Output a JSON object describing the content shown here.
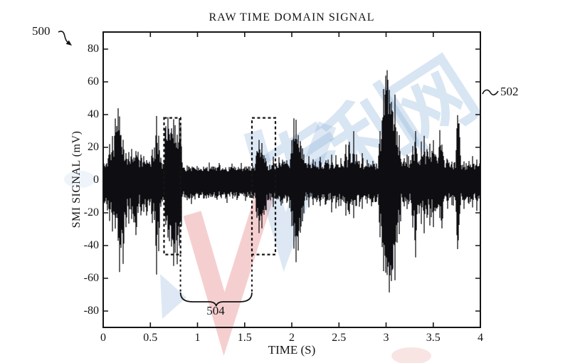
{
  "figure": {
    "label_500": "500",
    "label_502": "502"
  },
  "watermark": {
    "text": "专利网",
    "blue": "#8fb4da",
    "red": "#e06a6a"
  },
  "chart_data": {
    "type": "line",
    "title": "RAW TIME DOMAIN SIGNAL",
    "xlabel": "TIME (S)",
    "ylabel": "SMI SIGNAL (mV)",
    "xlim": [
      0,
      4
    ],
    "ylim": [
      -90,
      90
    ],
    "grid": false,
    "xticks": [
      0,
      0.5,
      1,
      1.5,
      2,
      2.5,
      3,
      3.5,
      4
    ],
    "xtick_labels": [
      "0",
      "0.5",
      "1",
      "1.5",
      "2",
      "2.5",
      "3",
      "3.5",
      "4"
    ],
    "yticks": [
      80,
      60,
      40,
      20,
      0,
      -20,
      -40,
      -60,
      -80
    ],
    "ytick_labels": [
      "80",
      "60",
      "40",
      "20",
      "0",
      "-20",
      "-40",
      "-60",
      "-80"
    ],
    "signal": {
      "description": "dense noisy SMI signal; envelope segments [t0,t1,hi_mV,lo_mV] plus spikes [t,hi_mV,lo_mV]",
      "baseline_band_mV": [
        -10,
        8
      ],
      "peak_mV": 81,
      "peak_t": 3.02,
      "min_mV": -81,
      "segments": [
        [
          0.0,
          0.05,
          10,
          -16
        ],
        [
          0.05,
          0.3,
          13,
          -15
        ],
        [
          0.3,
          0.62,
          11,
          -13
        ],
        [
          0.62,
          0.655,
          10,
          -12
        ],
        [
          0.655,
          0.835,
          28,
          -30
        ],
        [
          0.835,
          1.585,
          8,
          -11
        ],
        [
          1.585,
          1.62,
          8,
          -11
        ],
        [
          1.62,
          1.73,
          14,
          -18
        ],
        [
          1.73,
          1.83,
          9,
          -12
        ],
        [
          1.83,
          1.985,
          11,
          -13
        ],
        [
          1.985,
          2.14,
          16,
          -20
        ],
        [
          2.14,
          2.55,
          10,
          -12
        ],
        [
          2.55,
          2.72,
          12,
          -14
        ],
        [
          2.72,
          2.92,
          10,
          -13
        ],
        [
          2.92,
          3.16,
          16,
          -20
        ],
        [
          3.16,
          3.26,
          11,
          -13
        ],
        [
          3.26,
          3.34,
          12,
          -15
        ],
        [
          3.34,
          3.55,
          14,
          -17
        ],
        [
          3.55,
          3.62,
          12,
          -15
        ],
        [
          3.62,
          3.74,
          10,
          -12
        ],
        [
          3.74,
          3.78,
          12,
          -14
        ],
        [
          3.78,
          4.0,
          10,
          -12
        ]
      ],
      "spikes": [
        [
          0.07,
          22,
          -25
        ],
        [
          0.1,
          30,
          -35
        ],
        [
          0.125,
          38,
          -30
        ],
        [
          0.145,
          40,
          -25
        ],
        [
          0.16,
          45,
          -38
        ],
        [
          0.175,
          36,
          -52
        ],
        [
          0.19,
          30,
          -45
        ],
        [
          0.215,
          25,
          -52
        ],
        [
          0.24,
          20,
          -35
        ],
        [
          0.27,
          18,
          -28
        ],
        [
          0.3,
          20,
          -25
        ],
        [
          0.325,
          16,
          -30
        ],
        [
          0.345,
          20,
          -38
        ],
        [
          0.37,
          19,
          -22
        ],
        [
          0.4,
          18,
          -25
        ],
        [
          0.43,
          15,
          -20
        ],
        [
          0.46,
          14,
          -25
        ],
        [
          0.49,
          13,
          -18
        ],
        [
          0.52,
          20,
          -28
        ],
        [
          0.545,
          18,
          -22
        ],
        [
          0.565,
          36,
          -53
        ],
        [
          0.59,
          25,
          -40
        ],
        [
          0.61,
          15,
          -18
        ],
        [
          0.665,
          32,
          -22
        ],
        [
          0.685,
          35,
          -32
        ],
        [
          0.705,
          33,
          -44
        ],
        [
          0.725,
          35,
          -45
        ],
        [
          0.745,
          30,
          -52
        ],
        [
          0.765,
          34,
          -45
        ],
        [
          0.785,
          28,
          -52
        ],
        [
          0.805,
          34,
          -36
        ],
        [
          0.825,
          35,
          -26
        ],
        [
          1.63,
          20,
          -26
        ],
        [
          1.655,
          25,
          -33
        ],
        [
          1.68,
          23,
          -30
        ],
        [
          1.705,
          17,
          -24
        ],
        [
          1.8,
          13,
          -15
        ],
        [
          1.9,
          14,
          -16
        ],
        [
          1.95,
          13,
          -15
        ],
        [
          2.0,
          26,
          -30
        ],
        [
          2.02,
          36,
          -40
        ],
        [
          2.045,
          33,
          -45
        ],
        [
          2.065,
          30,
          -47
        ],
        [
          2.09,
          28,
          -38
        ],
        [
          2.115,
          20,
          -26
        ],
        [
          2.18,
          14,
          -16
        ],
        [
          2.23,
          15,
          -18
        ],
        [
          2.3,
          16,
          -18
        ],
        [
          2.36,
          14,
          -17
        ],
        [
          2.42,
          15,
          -19
        ],
        [
          2.47,
          14,
          -16
        ],
        [
          2.52,
          13,
          -15
        ],
        [
          2.575,
          20,
          -20
        ],
        [
          2.615,
          28,
          -25
        ],
        [
          2.655,
          27,
          -21
        ],
        [
          2.69,
          16,
          -16
        ],
        [
          2.75,
          15,
          -16
        ],
        [
          2.8,
          13,
          -15
        ],
        [
          2.86,
          14,
          -16
        ],
        [
          2.935,
          30,
          -35
        ],
        [
          2.955,
          40,
          -45
        ],
        [
          2.975,
          55,
          -55
        ],
        [
          2.995,
          70,
          -62
        ],
        [
          3.015,
          81,
          -70
        ],
        [
          3.035,
          65,
          -81
        ],
        [
          3.055,
          58,
          -75
        ],
        [
          3.075,
          50,
          -65
        ],
        [
          3.095,
          47,
          -55
        ],
        [
          3.115,
          35,
          -45
        ],
        [
          3.14,
          25,
          -30
        ],
        [
          3.19,
          15,
          -18
        ],
        [
          3.22,
          14,
          -16
        ],
        [
          3.285,
          25,
          -35
        ],
        [
          3.315,
          33,
          -52
        ],
        [
          3.375,
          22,
          -25
        ],
        [
          3.405,
          25,
          -30
        ],
        [
          3.435,
          23,
          -28
        ],
        [
          3.465,
          20,
          -25
        ],
        [
          3.5,
          22,
          -26
        ],
        [
          3.525,
          18,
          -22
        ],
        [
          3.57,
          33,
          -25
        ],
        [
          3.59,
          25,
          -34
        ],
        [
          3.65,
          14,
          -20
        ],
        [
          3.7,
          12,
          -15
        ],
        [
          3.755,
          47,
          -50
        ],
        [
          3.77,
          38,
          -30
        ],
        [
          3.83,
          13,
          -20
        ],
        [
          3.88,
          12,
          -15
        ],
        [
          3.92,
          14,
          -16
        ],
        [
          3.96,
          12,
          -18
        ]
      ]
    },
    "annotations": {
      "box_a": {
        "t": [
          0.645,
          0.82
        ],
        "mV": [
          -45.5,
          38
        ]
      },
      "box_b": {
        "t": [
          1.577,
          1.826
        ],
        "mV": [
          -45.5,
          38
        ]
      },
      "brace_t": [
        0.82,
        1.577
      ],
      "brace_label": "504"
    }
  }
}
